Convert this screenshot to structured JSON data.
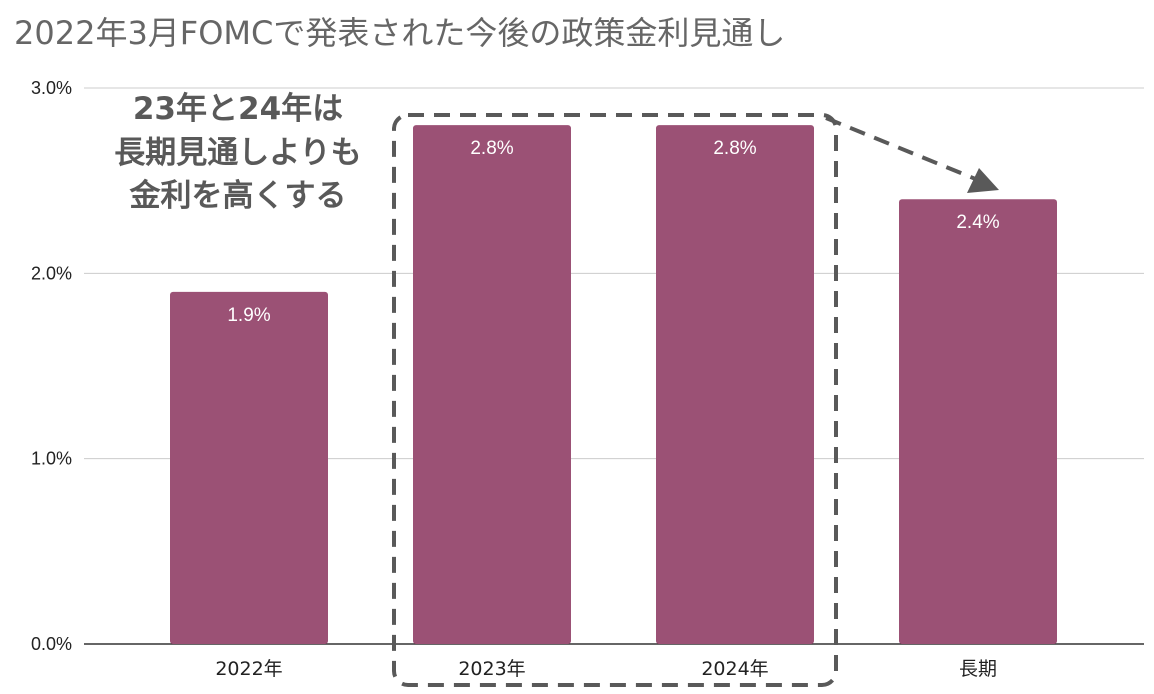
{
  "chart_data": {
    "type": "bar",
    "title": "2022年3月FOMCで発表された今後の政策金利見通し",
    "categories": [
      "2022年",
      "2023年",
      "2024年",
      "長期"
    ],
    "values": [
      1.9,
      2.8,
      2.8,
      2.4
    ],
    "data_labels": [
      "1.9%",
      "2.8%",
      "2.8%",
      "2.4%"
    ],
    "y_ticks": [
      0,
      1,
      2,
      3
    ],
    "y_tick_labels": [
      "0.0%",
      "1.0%",
      "2.0%",
      "3.0%"
    ],
    "ylim": [
      0,
      3
    ],
    "grid": true,
    "legend": "none",
    "annotation": {
      "lines": [
        "23年と24年は",
        "長期見通しよりも",
        "金利を高くする"
      ]
    }
  },
  "colors": {
    "bar": "#9b5175",
    "grid": "#cccccc",
    "annotation": "#595959",
    "title": "#666666"
  }
}
